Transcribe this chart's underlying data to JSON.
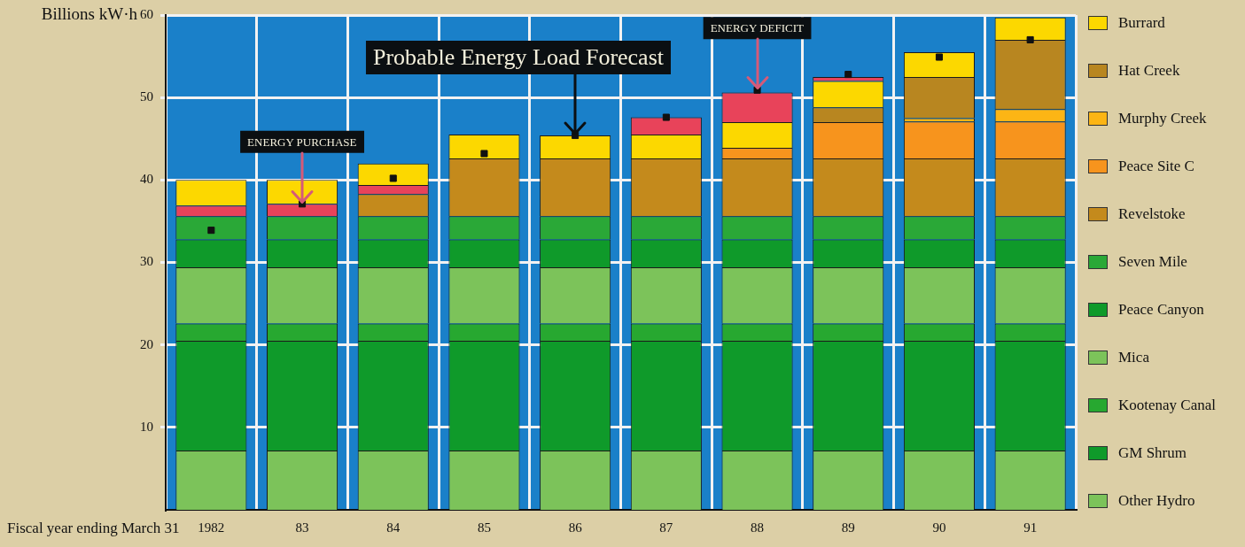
{
  "chart_data": {
    "type": "bar",
    "stacked": true,
    "ylabel": "Billions kW·h",
    "xlabel": "Fiscal year ending March 31",
    "categories": [
      "1982",
      "83",
      "84",
      "85",
      "86",
      "87",
      "88",
      "89",
      "90",
      "91"
    ],
    "ylim": [
      0,
      60
    ],
    "yticks": [
      10,
      20,
      30,
      40,
      50,
      60
    ],
    "grid": true,
    "legend": "right",
    "annotations": [
      {
        "text": "Probable Energy Load Forecast",
        "x": "86",
        "y": 45.4
      },
      {
        "text": "ENERGY PURCHASE",
        "x": "83",
        "y": 37.1
      },
      {
        "text": "ENERGY DEFICIT",
        "x": "88",
        "y": 50.9
      }
    ],
    "series": [
      {
        "name": "Other Hydro",
        "color": "#7cc35a",
        "values": [
          7.2,
          7.2,
          7.2,
          7.2,
          7.2,
          7.2,
          7.2,
          7.2,
          7.2,
          7.2
        ]
      },
      {
        "name": "GM Shrum",
        "color": "#0f9a2a",
        "values": [
          13.3,
          13.3,
          13.3,
          13.3,
          13.3,
          13.3,
          13.3,
          13.3,
          13.3,
          13.3
        ]
      },
      {
        "name": "Kootenay Canal",
        "color": "#27a830",
        "values": [
          2.1,
          2.1,
          2.1,
          2.1,
          2.1,
          2.1,
          2.1,
          2.1,
          2.1,
          2.1
        ]
      },
      {
        "name": "Mica",
        "color": "#7cc35a",
        "values": [
          6.8,
          6.8,
          6.8,
          6.8,
          6.8,
          6.8,
          6.8,
          6.8,
          6.8,
          6.8
        ]
      },
      {
        "name": "Peace Canyon",
        "color": "#0f9a2a",
        "values": [
          3.4,
          3.4,
          3.4,
          3.4,
          3.4,
          3.4,
          3.4,
          3.4,
          3.4,
          3.4
        ]
      },
      {
        "name": "Seven Mile",
        "color": "#2aa837",
        "values": [
          2.8,
          2.8,
          2.8,
          2.8,
          2.8,
          2.8,
          2.8,
          2.8,
          2.8,
          2.8
        ]
      },
      {
        "name": "Revelstoke",
        "color": "#c48a1c",
        "values": [
          null,
          null,
          2.7,
          7.0,
          7.0,
          7.0,
          7.0,
          7.0,
          7.0,
          7.0
        ]
      },
      {
        "color": "#e8435a",
        "values": [
          1.3,
          1.5,
          1.1,
          null,
          null,
          null,
          null,
          null,
          null,
          null
        ]
      },
      {
        "name": "Peace Site C",
        "color": "#f7941d",
        "values": [
          null,
          null,
          null,
          null,
          null,
          null,
          1.3,
          4.4,
          4.5,
          4.5
        ]
      },
      {
        "name": "Murphy Creek",
        "color": "#fcb515",
        "values": [
          null,
          null,
          null,
          null,
          null,
          null,
          null,
          null,
          0.4,
          1.5
        ]
      },
      {
        "name": "Hat Creek",
        "color": "#b88620",
        "values": [
          null,
          null,
          null,
          null,
          null,
          null,
          null,
          1.8,
          5.0,
          8.4
        ]
      },
      {
        "name": "Burrard",
        "color": "#fcd800",
        "values": [
          3.1,
          2.9,
          2.6,
          2.9,
          2.8,
          2.9,
          3.1,
          3.2,
          3.0,
          2.7
        ]
      },
      {
        "color": "#e8435a",
        "values": [
          null,
          null,
          null,
          null,
          null,
          2.1,
          3.6,
          0.5,
          null,
          null
        ]
      },
      {
        "type": "scatter",
        "color": "#111111",
        "marker": "square",
        "values": [
          33.9,
          37.1,
          40.2,
          43.2,
          45.4,
          47.6,
          50.9,
          52.8,
          54.9,
          57.0
        ]
      }
    ]
  }
}
